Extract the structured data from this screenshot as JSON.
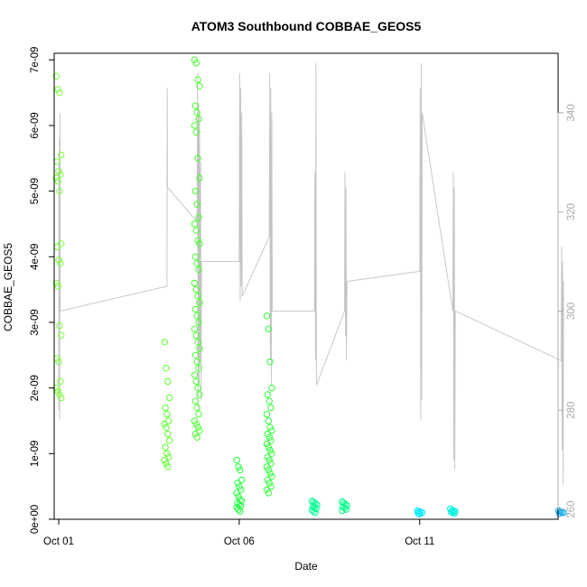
{
  "chart_data": {
    "type": "scatter",
    "title": "ATOM3 Southbound COBBAE_GEOS5",
    "xlabel": "Date",
    "ylabel": "COBBAE_GEOS5",
    "x_axis": {
      "type": "date",
      "range": [
        "2016-09-30T21:00",
        "2016-10-14T20:00"
      ],
      "ticks": [
        {
          "value": "2016-10-01",
          "label": "Oct 01"
        },
        {
          "value": "2016-10-06",
          "label": "Oct 06"
        },
        {
          "value": "2016-10-11",
          "label": "Oct 11"
        }
      ]
    },
    "y_axis": {
      "range": [
        0,
        7.1e-09
      ],
      "ticks": [
        {
          "value": 0,
          "label": "0e+00"
        },
        {
          "value": 1e-09,
          "label": "1e-09"
        },
        {
          "value": 2e-09,
          "label": "2e-09"
        },
        {
          "value": 3e-09,
          "label": "3e-09"
        },
        {
          "value": 4e-09,
          "label": "4e-09"
        },
        {
          "value": 5e-09,
          "label": "5e-09"
        },
        {
          "value": 6e-09,
          "label": "6e-09"
        },
        {
          "value": 7e-09,
          "label": "7e-09"
        }
      ]
    },
    "y2_axis": {
      "range": [
        258,
        352
      ],
      "color": "#aaaaaa",
      "ticks": [
        {
          "value": 260,
          "label": "260"
        },
        {
          "value": 280,
          "label": "280"
        },
        {
          "value": 300,
          "label": "300"
        },
        {
          "value": 320,
          "label": "320"
        },
        {
          "value": 340,
          "label": "340"
        }
      ]
    },
    "grid": false,
    "legend": "none",
    "series": [
      {
        "kind": "points",
        "axis": "y",
        "marker": "open-circle",
        "segments": [
          {
            "x": "2016-10-01T00:00",
            "color": "#7cff3c",
            "values": [
              6.75e-09,
              6.55e-09,
              6.5e-09,
              5.55e-09,
              5.45e-09,
              5.3e-09,
              5.25e-09,
              5.2e-09,
              5.15e-09,
              5e-09,
              4.2e-09,
              4.15e-09,
              3.95e-09,
              3.9e-09,
              3.6e-09,
              3.55e-09,
              2.95e-09,
              2.8e-09,
              2.45e-09,
              2.4e-09,
              2.1e-09,
              2e-09,
              1.95e-09,
              1.9e-09,
              1.85e-09
            ]
          },
          {
            "x": "2016-10-04T00:00",
            "color": "#5cff2c",
            "values": [
              2.7e-09,
              2.3e-09,
              2.1e-09,
              1.85e-09,
              1.7e-09,
              1.6e-09,
              1.5e-09,
              1.45e-09,
              1.4e-09,
              1.3e-09,
              1.2e-09,
              1.1e-09,
              1e-09,
              9.5e-10,
              9e-10,
              8.5e-10,
              8e-10
            ]
          },
          {
            "x": "2016-10-04T20:00",
            "color": "#4aff30",
            "values": [
              7e-09,
              6.95e-09,
              6.7e-09,
              6.6e-09,
              6.3e-09,
              6.2e-09,
              6.1e-09,
              6e-09,
              5.9e-09,
              5.5e-09,
              5.2e-09,
              5e-09,
              4.8e-09,
              4.6e-09,
              4.5e-09,
              4.4e-09,
              4.25e-09,
              4.2e-09,
              4e-09,
              3.9e-09,
              3.8e-09,
              3.6e-09,
              3.5e-09,
              3.4e-09,
              3.3e-09,
              3.2e-09,
              3.1e-09,
              3e-09,
              2.9e-09,
              2.8e-09,
              2.7e-09,
              2.6e-09,
              2.5e-09,
              2.4e-09,
              2.3e-09,
              2.2e-09,
              2.1e-09,
              2e-09,
              1.9e-09,
              1.8e-09,
              1.7e-09,
              1.6e-09,
              1.5e-09,
              1.45e-09,
              1.4e-09,
              1.35e-09,
              1.3e-09,
              1.25e-09
            ]
          },
          {
            "x": "2016-10-06T00:00",
            "color": "#20ff40",
            "values": [
              9e-10,
              8e-10,
              7.5e-10,
              6e-10,
              5.5e-10,
              5e-10,
              4.5e-10,
              4e-10,
              3.5e-10,
              3e-10,
              2.8e-10,
              2.5e-10,
              2.2e-10,
              2e-10,
              1.8e-10,
              1.5e-10,
              1.2e-10
            ]
          },
          {
            "x": "2016-10-06T20:00",
            "color": "#30ff38",
            "values": [
              3.1e-09,
              2.9e-09,
              2.4e-09,
              2e-09,
              1.9e-09,
              1.8e-09,
              1.7e-09,
              1.6e-09,
              1.5e-09,
              1.4e-09,
              1.35e-09,
              1.3e-09,
              1.25e-09,
              1.2e-09,
              1.15e-09,
              1.1e-09,
              1.05e-09,
              1e-09,
              9.5e-10,
              9e-10,
              8.5e-10,
              8e-10,
              7.5e-10,
              7e-10,
              6.5e-10,
              6e-10,
              5.5e-10,
              5e-10,
              4.5e-10,
              4e-10
            ]
          },
          {
            "x": "2016-10-08T02:00",
            "color": "#00ff90",
            "values": [
              2.8e-10,
              2.6e-10,
              2.4e-10,
              2.2e-10,
              2e-10,
              1.8e-10,
              1.6e-10,
              1.4e-10,
              1.2e-10,
              1e-10
            ]
          },
          {
            "x": "2016-10-08T22:00",
            "color": "#00ff88",
            "values": [
              2.7e-10,
              2.5e-10,
              2.3e-10,
              2.1e-10,
              1.9e-10,
              1.7e-10,
              1.5e-10,
              1.3e-10
            ]
          },
          {
            "x": "2016-10-11T00:00",
            "color": "#00e8ff",
            "values": [
              1.3e-10,
              1.2e-10,
              1.1e-10,
              1e-10,
              9e-11,
              8e-11
            ]
          },
          {
            "x": "2016-10-11T22:00",
            "color": "#00f2e0",
            "values": [
              1.6e-10,
              1.4e-10,
              1.3e-10,
              1.2e-10,
              1.1e-10,
              1e-10,
              9e-11
            ]
          },
          {
            "x": "2016-10-14T22:00",
            "color": "#00a8f0",
            "values": [
              1.3e-10,
              1.2e-10,
              1.1e-10,
              1e-10,
              9e-11
            ]
          }
        ]
      },
      {
        "kind": "line",
        "axis": "y2",
        "color": "#c4c4c4",
        "points": [
          [
            "2016-10-01T00:00",
            280
          ],
          [
            "2016-10-01T00:10",
            330
          ],
          [
            "2016-10-01T00:20",
            300
          ],
          [
            "2016-10-01T00:30",
            335
          ],
          [
            "2016-10-01T00:40",
            278
          ],
          [
            "2016-10-01T00:50",
            340
          ],
          [
            "2016-10-01T01:00",
            300
          ],
          [
            "2016-10-04T00:00",
            305
          ],
          [
            "2016-10-04T00:10",
            345
          ],
          [
            "2016-10-04T00:20",
            325
          ],
          [
            "2016-10-04T20:00",
            318
          ],
          [
            "2016-10-04T20:20",
            348
          ],
          [
            "2016-10-04T20:40",
            280
          ],
          [
            "2016-10-04T21:00",
            342
          ],
          [
            "2016-10-04T21:20",
            285
          ],
          [
            "2016-10-04T21:40",
            340
          ],
          [
            "2016-10-04T22:00",
            290
          ],
          [
            "2016-10-04T22:20",
            330
          ],
          [
            "2016-10-04T22:40",
            282
          ],
          [
            "2016-10-04T23:00",
            310
          ],
          [
            "2016-10-06T00:00",
            310
          ],
          [
            "2016-10-06T00:20",
            348
          ],
          [
            "2016-10-06T00:40",
            302
          ],
          [
            "2016-10-06T01:00",
            345
          ],
          [
            "2016-10-06T01:20",
            305
          ],
          [
            "2016-10-06T01:40",
            340
          ],
          [
            "2016-10-06T02:00",
            303
          ],
          [
            "2016-10-06T20:00",
            315
          ],
          [
            "2016-10-06T20:20",
            348
          ],
          [
            "2016-10-06T20:40",
            290
          ],
          [
            "2016-10-06T21:00",
            345
          ],
          [
            "2016-10-06T21:20",
            285
          ],
          [
            "2016-10-06T21:40",
            340
          ],
          [
            "2016-10-06T22:00",
            300
          ],
          [
            "2016-10-08T02:00",
            300
          ],
          [
            "2016-10-08T02:20",
            328
          ],
          [
            "2016-10-08T02:40",
            290
          ],
          [
            "2016-10-08T03:00",
            350
          ],
          [
            "2016-10-08T03:20",
            285
          ],
          [
            "2016-10-08T22:00",
            300
          ],
          [
            "2016-10-08T22:20",
            328
          ],
          [
            "2016-10-08T22:40",
            295
          ],
          [
            "2016-10-08T23:00",
            325
          ],
          [
            "2016-10-08T23:20",
            290
          ],
          [
            "2016-10-08T23:40",
            306
          ],
          [
            "2016-10-11T00:00",
            308
          ],
          [
            "2016-10-11T00:20",
            345
          ],
          [
            "2016-10-11T00:40",
            278
          ],
          [
            "2016-10-11T01:00",
            350
          ],
          [
            "2016-10-11T01:20",
            282
          ],
          [
            "2016-10-11T01:40",
            340
          ],
          [
            "2016-10-11T22:00",
            300
          ],
          [
            "2016-10-11T22:20",
            328
          ],
          [
            "2016-10-11T22:40",
            270
          ],
          [
            "2016-10-11T23:00",
            325
          ],
          [
            "2016-10-11T23:20",
            268
          ],
          [
            "2016-10-11T23:40",
            300
          ],
          [
            "2016-10-14T22:00",
            290
          ],
          [
            "2016-10-14T22:20",
            313
          ],
          [
            "2016-10-14T22:40",
            272
          ],
          [
            "2016-10-14T23:00",
            310
          ],
          [
            "2016-10-14T23:20",
            265
          ],
          [
            "2016-10-14T23:40",
            306
          ]
        ]
      }
    ]
  }
}
